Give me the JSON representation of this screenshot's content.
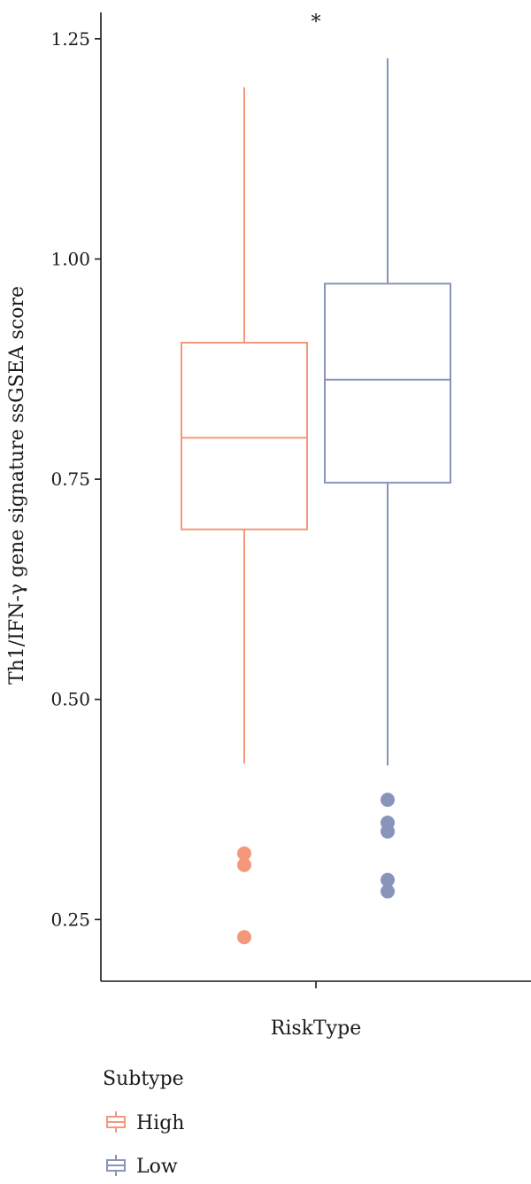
{
  "chart_data": {
    "type": "boxplot",
    "title": "",
    "xlabel": "RiskType",
    "ylabel": "Th1/IFN-γ gene signature ssGSEA score",
    "ylim": [
      0.18,
      1.28
    ],
    "yticks": [
      0.25,
      0.5,
      0.75,
      1.0,
      1.25
    ],
    "ytick_labels": [
      "0.25",
      "0.50",
      "0.75",
      "1.00",
      "1.25"
    ],
    "grid": false,
    "significance_label": "*",
    "legend": {
      "title": "Subtype",
      "placement": "bottom-left",
      "entries": [
        "High",
        "Low"
      ]
    },
    "series": [
      {
        "name": "High",
        "color": "#f4987c",
        "whisker_low": 0.427,
        "q1": 0.693,
        "median": 0.797,
        "q3": 0.905,
        "whisker_high": 1.195,
        "outliers": [
          0.325,
          0.312,
          0.23
        ]
      },
      {
        "name": "Low",
        "color": "#8994ba",
        "whisker_low": 0.425,
        "q1": 0.746,
        "median": 0.863,
        "q3": 0.972,
        "whisker_high": 1.228,
        "outliers": [
          0.386,
          0.36,
          0.35,
          0.295,
          0.282
        ]
      }
    ]
  }
}
